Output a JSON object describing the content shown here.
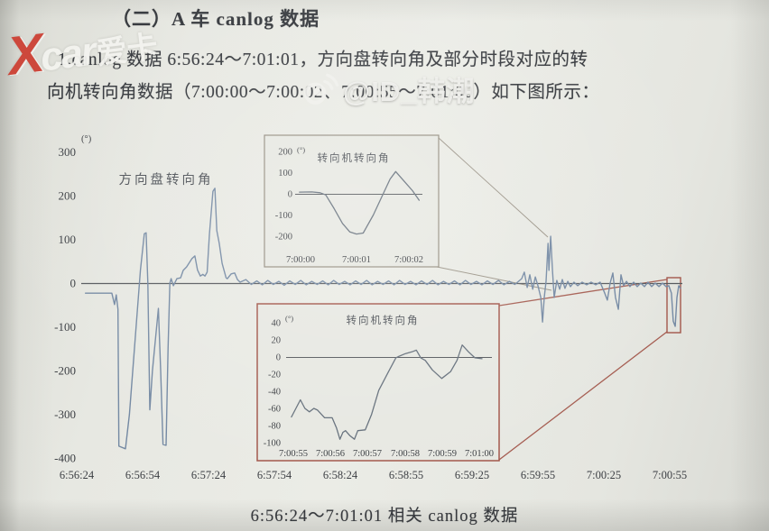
{
  "page": {
    "heading": "（二）A 车 canlog 数据",
    "body_line1": "1.canlog 数据 6:56:24～7:01:01，方向盘转向角及部分时段对应的转",
    "body_line2": "向机转向角数据（7:00:00～7:00:02、7:00:55～7:01:00）如下图所示：",
    "caption": "6:56:24～7:01:01 相关 canlog 数据"
  },
  "watermarks": {
    "xcar_x": "X",
    "xcar_brand": "car",
    "xcar_suffix": "爱卡",
    "weibo_id": "@ID_韩潮"
  },
  "colors": {
    "paper": "#e7e8e2",
    "ink": "#3b3e43",
    "ink_soft": "#4c5056",
    "axis": "#55585c",
    "curve_main": "#7489a3",
    "curve_inset": "#636e7a",
    "box_grey": "#938b7e",
    "accent_red": "#a2564a"
  },
  "chart_data": [
    {
      "type": "line",
      "title": "方向盘转向角",
      "ylabel": "(°)",
      "x_ticks": [
        "6:56:24",
        "6:56:54",
        "6:57:24",
        "6:57:54",
        "6:58:24",
        "6:58:55",
        "6:59:25",
        "6:59:55",
        "7:00:25",
        "7:00:55"
      ],
      "y_ticks": [
        300,
        200,
        100,
        0,
        -100,
        -200,
        -300,
        -400
      ],
      "ylim": [
        -400,
        330
      ],
      "x_unit": "seconds after 6:56:24",
      "series": [
        {
          "name": "方向盘转向角",
          "points": [
            [
              4,
              -23
            ],
            [
              16,
              -23
            ],
            [
              17.2,
              -49
            ],
            [
              18,
              -27
            ],
            [
              18.8,
              -60
            ],
            [
              19.2,
              -373
            ],
            [
              22.2,
              -379
            ],
            [
              24,
              -300
            ],
            [
              29,
              30
            ],
            [
              30.8,
              113
            ],
            [
              31.6,
              115
            ],
            [
              32.4,
              0
            ],
            [
              33.3,
              -290
            ],
            [
              34.5,
              -200
            ],
            [
              37.2,
              -58
            ],
            [
              38.2,
              -200
            ],
            [
              39.3,
              -369
            ],
            [
              40.7,
              -371
            ],
            [
              41.6,
              -150
            ],
            [
              42.4,
              0
            ],
            [
              43,
              10
            ],
            [
              44,
              -6
            ],
            [
              45.6,
              10
            ],
            [
              47.3,
              12
            ],
            [
              48.5,
              29
            ],
            [
              50,
              37
            ],
            [
              52.5,
              56
            ],
            [
              53.8,
              62
            ],
            [
              55,
              30
            ],
            [
              56.3,
              16
            ],
            [
              57.4,
              20
            ],
            [
              58.4,
              16
            ],
            [
              59.4,
              25
            ],
            [
              60.4,
              111
            ],
            [
              62,
              210
            ],
            [
              62.9,
              217
            ],
            [
              63.8,
              120
            ],
            [
              64.9,
              91
            ],
            [
              66.2,
              45
            ],
            [
              68,
              12
            ],
            [
              68.6,
              10
            ],
            [
              70.3,
              21
            ],
            [
              71.9,
              23
            ],
            [
              73.2,
              8
            ],
            [
              74.4,
              2
            ],
            [
              77,
              8
            ],
            [
              79.5,
              -3
            ],
            [
              82,
              5
            ],
            [
              84.5,
              -4
            ],
            [
              87,
              6
            ],
            [
              89.5,
              -3
            ],
            [
              92,
              4
            ],
            [
              94.5,
              -5
            ],
            [
              97,
              5
            ],
            [
              99.5,
              -3
            ],
            [
              102,
              6
            ],
            [
              104.5,
              -4
            ],
            [
              107,
              4
            ],
            [
              109.5,
              -3
            ],
            [
              112,
              5
            ],
            [
              114.5,
              -4
            ],
            [
              117,
              6
            ],
            [
              119.5,
              -3
            ],
            [
              122,
              4
            ],
            [
              124.5,
              -4
            ],
            [
              127,
              5
            ],
            [
              129.5,
              -3
            ],
            [
              132,
              6
            ],
            [
              134.5,
              -4
            ],
            [
              137,
              4
            ],
            [
              139.5,
              -3
            ],
            [
              142,
              5
            ],
            [
              144.5,
              -4
            ],
            [
              147,
              6
            ],
            [
              149.5,
              -3
            ],
            [
              152,
              4
            ],
            [
              154.5,
              -4
            ],
            [
              157,
              5
            ],
            [
              159.5,
              -3
            ],
            [
              162,
              6
            ],
            [
              164.5,
              -4
            ],
            [
              167,
              4
            ],
            [
              169.5,
              -3
            ],
            [
              172,
              5
            ],
            [
              174.5,
              -4
            ],
            [
              177,
              6
            ],
            [
              179.5,
              -3
            ],
            [
              182,
              4
            ],
            [
              184.5,
              -4
            ],
            [
              187,
              5
            ],
            [
              189.5,
              -3
            ],
            [
              192,
              6
            ],
            [
              194.5,
              -4
            ],
            [
              197,
              4
            ],
            [
              199.5,
              -3
            ],
            [
              202.6,
              10
            ],
            [
              203.8,
              25
            ],
            [
              205.1,
              -10
            ],
            [
              206.3,
              19
            ],
            [
              207.6,
              -14
            ],
            [
              208.8,
              14
            ],
            [
              210,
              -6
            ],
            [
              211.3,
              -33
            ],
            [
              212.1,
              -89
            ],
            [
              212.9,
              -33
            ],
            [
              213.7,
              4
            ],
            [
              214.6,
              91
            ],
            [
              215,
              29
            ],
            [
              215.8,
              107
            ],
            [
              216.6,
              29
            ],
            [
              217.4,
              -33
            ],
            [
              218.6,
              6
            ],
            [
              219.9,
              -14
            ],
            [
              221.1,
              8
            ],
            [
              222.3,
              -12
            ],
            [
              223.6,
              4
            ],
            [
              224.8,
              -8
            ],
            [
              226.4,
              2
            ],
            [
              228.1,
              -6
            ],
            [
              230.1,
              2
            ],
            [
              232.2,
              -4
            ],
            [
              234.2,
              2
            ],
            [
              236.3,
              -4
            ],
            [
              238.3,
              2
            ],
            [
              240.4,
              -23
            ],
            [
              241.6,
              -39
            ],
            [
              242.9,
              0
            ],
            [
              244.1,
              23
            ],
            [
              245.3,
              -33
            ],
            [
              246.6,
              -60
            ],
            [
              247.8,
              19
            ],
            [
              249,
              -6
            ],
            [
              250.3,
              4
            ],
            [
              251.9,
              -8
            ],
            [
              253.6,
              2
            ],
            [
              255.2,
              -8
            ],
            [
              256.8,
              0
            ],
            [
              258.5,
              -8
            ],
            [
              260.1,
              2
            ],
            [
              261.8,
              -8
            ],
            [
              263.4,
              0
            ],
            [
              265.1,
              -8
            ],
            [
              266.7,
              0
            ],
            [
              268.3,
              -8
            ],
            [
              269.6,
              -6
            ],
            [
              270.8,
              -23
            ],
            [
              271.6,
              -87
            ],
            [
              272.5,
              -99
            ],
            [
              273.3,
              -33
            ],
            [
              274.1,
              -6
            ],
            [
              274.9,
              -12
            ]
          ]
        }
      ]
    },
    {
      "type": "line",
      "title": "转向机转向角",
      "ylabel": "(°)",
      "x_ticks": [
        "7:00:00",
        "7:00:01",
        "7:00:02"
      ],
      "y_ticks": [
        200,
        100,
        0,
        -100,
        -200
      ],
      "ylim": [
        -220,
        220
      ],
      "x_unit": "seconds after 7:00:00",
      "series": [
        {
          "name": "转向机转向角",
          "points": [
            [
              -0.02,
              8
            ],
            [
              0.2,
              9
            ],
            [
              0.35,
              5
            ],
            [
              0.45,
              -5
            ],
            [
              0.6,
              -70
            ],
            [
              0.75,
              -140
            ],
            [
              0.88,
              -180
            ],
            [
              1,
              -190
            ],
            [
              1.12,
              -185
            ],
            [
              1.3,
              -100
            ],
            [
              1.45,
              -15
            ],
            [
              1.6,
              70
            ],
            [
              1.7,
              105
            ],
            [
              1.85,
              60
            ],
            [
              2,
              15
            ],
            [
              2.12,
              -30
            ]
          ]
        }
      ]
    },
    {
      "type": "line",
      "title": "转向机转向角",
      "ylabel": "(°)",
      "x_ticks": [
        "7:00:55",
        "7:00:56",
        "7:00:57",
        "7:00:58",
        "7:00:59",
        "7:01:00"
      ],
      "y_ticks": [
        40,
        20,
        0,
        -20,
        -40,
        -60,
        -80,
        -100
      ],
      "ylim": [
        -108,
        48
      ],
      "x_unit": "seconds after 7:00:55",
      "series": [
        {
          "name": "转向机转向角",
          "points": [
            [
              -0.05,
              -70
            ],
            [
              0.19,
              -50
            ],
            [
              0.31,
              -60
            ],
            [
              0.43,
              -64
            ],
            [
              0.55,
              -60
            ],
            [
              0.65,
              -62
            ],
            [
              0.84,
              -71
            ],
            [
              1.04,
              -71
            ],
            [
              1.16,
              -83
            ],
            [
              1.25,
              -96
            ],
            [
              1.33,
              -88
            ],
            [
              1.4,
              -86
            ],
            [
              1.52,
              -92
            ],
            [
              1.64,
              -96
            ],
            [
              1.73,
              -86
            ],
            [
              1.93,
              -85
            ],
            [
              2.1,
              -67
            ],
            [
              2.29,
              -39
            ],
            [
              2.53,
              -19
            ],
            [
              2.75,
              -1
            ],
            [
              2.84,
              1
            ],
            [
              3.01,
              4
            ],
            [
              3.18,
              6
            ],
            [
              3.3,
              8
            ],
            [
              3.42,
              -1
            ],
            [
              3.54,
              -4
            ],
            [
              3.73,
              -15
            ],
            [
              3.98,
              -25
            ],
            [
              4.22,
              -17
            ],
            [
              4.39,
              -4
            ],
            [
              4.53,
              14
            ],
            [
              4.7,
              6
            ],
            [
              4.87,
              -1
            ],
            [
              5.06,
              -2
            ]
          ]
        }
      ]
    }
  ]
}
